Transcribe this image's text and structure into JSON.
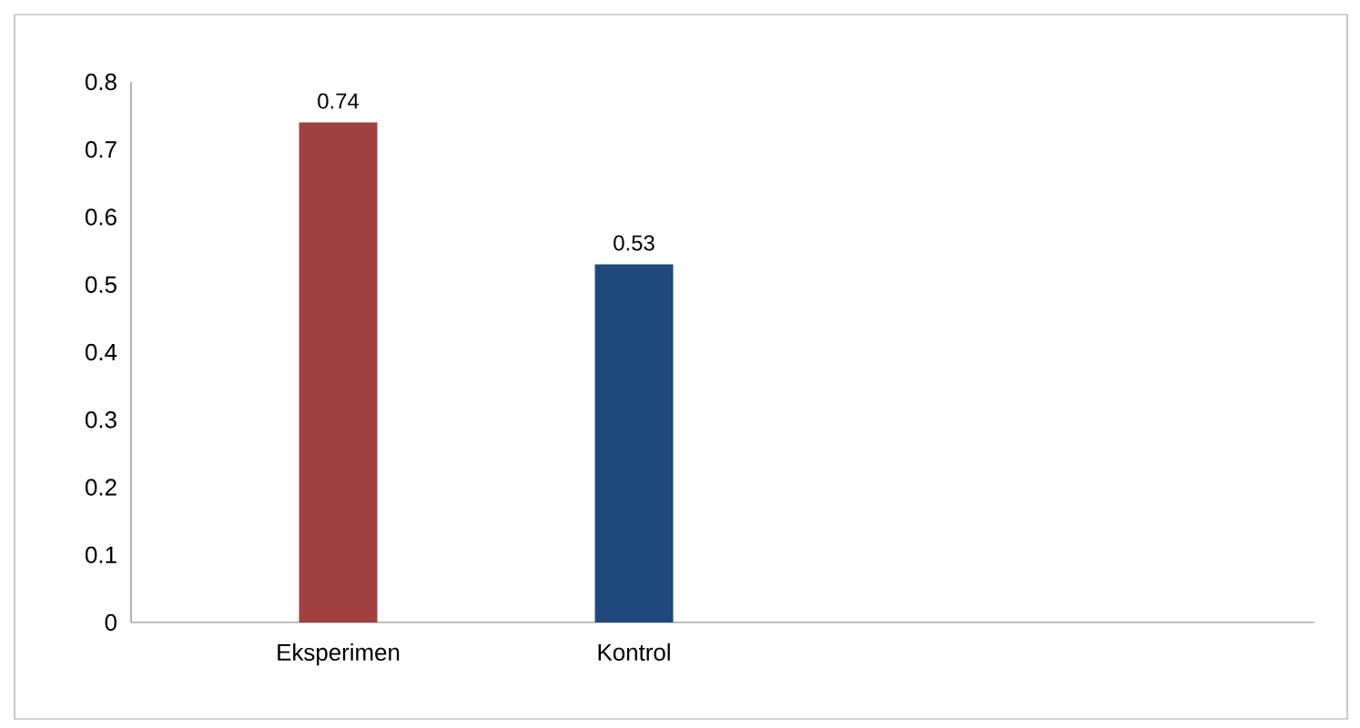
{
  "chart_data": {
    "type": "bar",
    "categories": [
      "Eksperimen",
      "Kontrol",
      null,
      null
    ],
    "values": [
      0.74,
      0.53,
      null,
      null
    ],
    "colors": [
      "#a04040",
      "#1f497d",
      null,
      null
    ],
    "ylim": [
      0,
      0.8
    ],
    "yticks": [
      0,
      0.1,
      0.2,
      0.3,
      0.4,
      0.5,
      0.6,
      0.7,
      0.8
    ],
    "data_labels": true
  }
}
